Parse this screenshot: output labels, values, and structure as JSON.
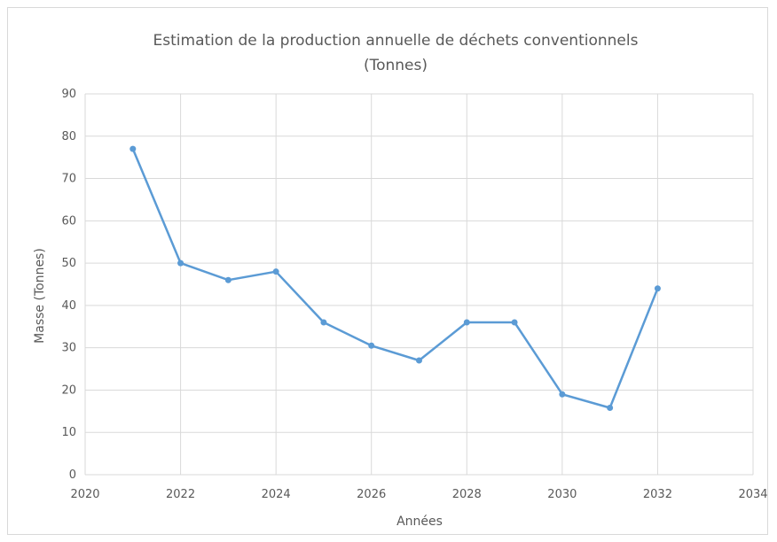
{
  "chart_data": {
    "type": "scatter",
    "title": "Estimation de la production annuelle de déchets conventionnels",
    "subtitle": "(Tonnes)",
    "xlabel": "Années",
    "ylabel": "Masse (Tonnes)",
    "xlim": [
      2020,
      2034
    ],
    "ylim": [
      0,
      90
    ],
    "xticks": [
      "2020",
      "2022",
      "2024",
      "2026",
      "2028",
      "2030",
      "2032",
      "2034"
    ],
    "yticks": [
      "0",
      "10",
      "20",
      "30",
      "40",
      "50",
      "60",
      "70",
      "80",
      "90"
    ],
    "grid": true,
    "legend": "none",
    "colors": {
      "series": "#5b9bd5",
      "grid": "#d9d9d9",
      "text": "#595959"
    },
    "series": [
      {
        "x": [
          2021,
          2022,
          2023,
          2024,
          2025,
          2026,
          2027,
          2028,
          2029,
          2030,
          2031,
          2032
        ],
        "y": [
          77,
          50,
          46,
          48,
          36,
          30.5,
          27,
          36,
          36,
          19,
          15.8,
          44
        ]
      }
    ]
  }
}
